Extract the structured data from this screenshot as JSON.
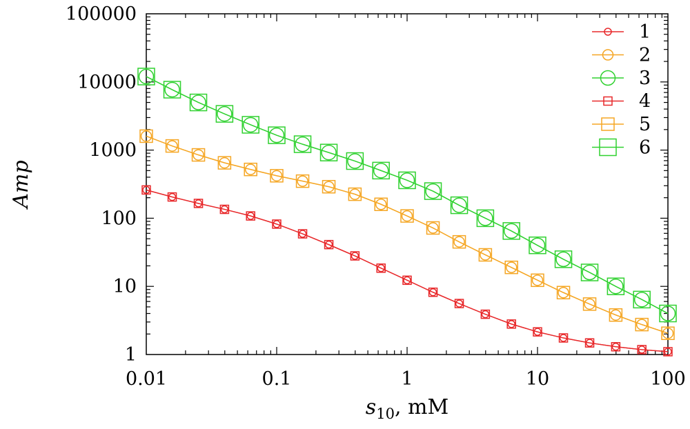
{
  "chart_data": {
    "type": "line",
    "title": "",
    "xlabel_base": "s",
    "xlabel_sub": "10",
    "xlabel_rest": ", mM",
    "ylabel": "Amp",
    "xscale": "log",
    "yscale": "log",
    "xlim": [
      0.01,
      100
    ],
    "ylim": [
      1,
      100000
    ],
    "xticks": [
      0.01,
      0.1,
      1,
      10,
      100
    ],
    "xtick_labels": [
      "0.01",
      "0.1",
      "1",
      "10",
      "100"
    ],
    "yticks": [
      1,
      10,
      100,
      1000,
      10000,
      100000
    ],
    "ytick_labels": [
      "1",
      "10",
      "100",
      "1000",
      "10000",
      "100000"
    ],
    "legend_position": "top-right",
    "colors": {
      "red": "#e8292b",
      "orange": "#f5a623",
      "green": "#2fd12f"
    },
    "x": [
      0.01,
      0.0158,
      0.0251,
      0.0398,
      0.0631,
      0.1,
      0.158,
      0.251,
      0.398,
      0.631,
      1,
      1.58,
      2.51,
      3.98,
      6.31,
      10,
      15.8,
      25.1,
      39.8,
      63.1,
      100
    ],
    "series": [
      {
        "name": "1",
        "color": "#e8292b",
        "marker": "circle",
        "marker_size": "small",
        "values": [
          260,
          205,
          165,
          135,
          108,
          82,
          59,
          41,
          28,
          18.5,
          12.3,
          8.2,
          5.6,
          3.9,
          2.8,
          2.15,
          1.75,
          1.48,
          1.3,
          1.18,
          1.1
        ]
      },
      {
        "name": "2",
        "color": "#f5a623",
        "marker": "circle",
        "marker_size": "medium",
        "values": [
          1600,
          1150,
          850,
          650,
          520,
          420,
          350,
          290,
          225,
          160,
          108,
          72,
          45,
          29,
          19,
          12.3,
          8.1,
          5.5,
          3.8,
          2.75,
          2.05
        ]
      },
      {
        "name": "3",
        "color": "#2fd12f",
        "marker": "circle",
        "marker_size": "large",
        "values": [
          12000,
          7700,
          5000,
          3400,
          2350,
          1650,
          1220,
          920,
          690,
          500,
          360,
          250,
          155,
          100,
          65,
          40,
          25,
          16,
          10,
          6.4,
          4.0
        ]
      },
      {
        "name": "4",
        "color": "#e8292b",
        "marker": "square",
        "marker_size": "small",
        "values": [
          260,
          205,
          165,
          135,
          108,
          82,
          59,
          41,
          28,
          18.5,
          12.3,
          8.2,
          5.6,
          3.9,
          2.8,
          2.15,
          1.75,
          1.48,
          1.3,
          1.18,
          1.1
        ]
      },
      {
        "name": "5",
        "color": "#f5a623",
        "marker": "square",
        "marker_size": "medium",
        "values": [
          1600,
          1150,
          850,
          650,
          520,
          420,
          350,
          290,
          225,
          160,
          108,
          72,
          45,
          29,
          19,
          12.3,
          8.1,
          5.5,
          3.8,
          2.75,
          2.05
        ]
      },
      {
        "name": "6",
        "color": "#2fd12f",
        "marker": "square",
        "marker_size": "large",
        "values": [
          12000,
          7700,
          5000,
          3400,
          2350,
          1650,
          1220,
          920,
          690,
          500,
          360,
          250,
          155,
          100,
          65,
          40,
          25,
          16,
          10,
          6.4,
          4.0
        ]
      }
    ]
  }
}
